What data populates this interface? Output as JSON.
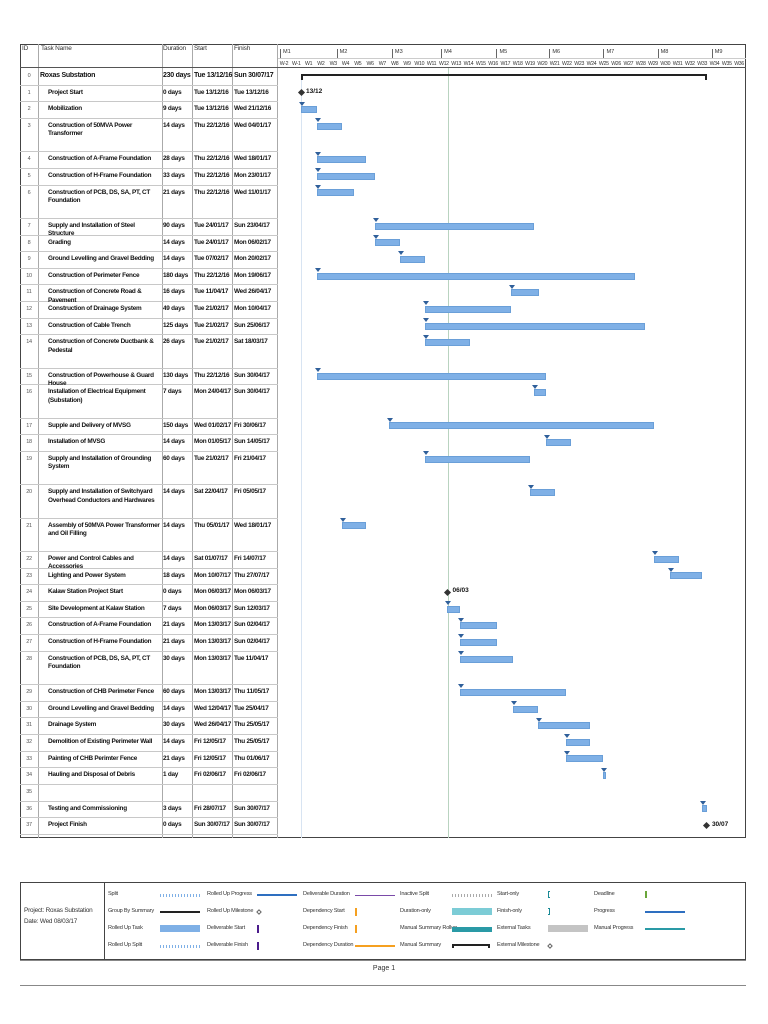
{
  "columns": {
    "id": "ID",
    "name": "Task Name",
    "duration": "Duration",
    "start": "Start",
    "finish": "Finish"
  },
  "timescale": {
    "months": [
      "M1",
      "M2",
      "M3",
      "M4",
      "M5",
      "M6",
      "M7",
      "M8",
      "M9"
    ],
    "weeks": [
      "W-2",
      "W-1",
      "W1",
      "W2",
      "W3",
      "W4",
      "W5",
      "W6",
      "W7",
      "W8",
      "W9",
      "W10",
      "W11",
      "W12",
      "W13",
      "W14",
      "W15",
      "W16",
      "W17",
      "W18",
      "W19",
      "W20",
      "W21",
      "W22",
      "W23",
      "W24",
      "W25",
      "W26",
      "W27",
      "W28",
      "W29",
      "W30",
      "W31",
      "W32",
      "W33",
      "W34",
      "W35",
      "W36"
    ]
  },
  "colors": {
    "task_bar": "#7fb0e6",
    "task_border": "#6a9fd8",
    "status_line": "#b9d3c0",
    "summary": "#222222"
  },
  "tasks": [
    {
      "id": "0",
      "name": "Roxas Substation",
      "duration": "230 days",
      "start": "Tue 13/12/16",
      "finish": "Sun 30/07/17",
      "type": "summary",
      "lines": 1
    },
    {
      "id": "1",
      "name": "Project Start",
      "duration": "0 days",
      "start": "Tue 13/12/16",
      "finish": "Tue 13/12/16",
      "type": "milestone",
      "label": "13/12",
      "lines": 1
    },
    {
      "id": "2",
      "name": "Mobilization",
      "duration": "9 days",
      "start": "Tue 13/12/16",
      "finish": "Wed 21/12/16",
      "type": "task",
      "lines": 1
    },
    {
      "id": "3",
      "name": "Construction of 50MVA Power Transformer",
      "duration": "14 days",
      "start": "Thu 22/12/16",
      "finish": "Wed 04/01/17",
      "type": "task",
      "lines": 2
    },
    {
      "id": "4",
      "name": "Construction of A-Frame Foundation",
      "duration": "28 days",
      "start": "Thu 22/12/16",
      "finish": "Wed 18/01/17",
      "type": "task",
      "lines": 1
    },
    {
      "id": "5",
      "name": "Construction of H-Frame Foundation",
      "duration": "33 days",
      "start": "Thu 22/12/16",
      "finish": "Mon 23/01/17",
      "type": "task",
      "lines": 1
    },
    {
      "id": "6",
      "name": "Construction of PCB, DS, SA, PT, CT Foundation",
      "duration": "21 days",
      "start": "Thu 22/12/16",
      "finish": "Wed 11/01/17",
      "type": "task",
      "lines": 2
    },
    {
      "id": "7",
      "name": "Supply and Installation of Steel Structure",
      "duration": "90 days",
      "start": "Tue 24/01/17",
      "finish": "Sun 23/04/17",
      "type": "task",
      "lines": 1
    },
    {
      "id": "8",
      "name": "Grading",
      "duration": "14 days",
      "start": "Tue 24/01/17",
      "finish": "Mon 06/02/17",
      "type": "task",
      "lines": 1
    },
    {
      "id": "9",
      "name": "Ground Levelling and Gravel Bedding",
      "duration": "14 days",
      "start": "Tue 07/02/17",
      "finish": "Mon 20/02/17",
      "type": "task",
      "lines": 1
    },
    {
      "id": "10",
      "name": "Construction of Perimeter Fence",
      "duration": "180 days",
      "start": "Thu 22/12/16",
      "finish": "Mon 19/06/17",
      "type": "task",
      "lines": 1
    },
    {
      "id": "11",
      "name": "Construction of Concrete Road & Pavement",
      "duration": "16 days",
      "start": "Tue 11/04/17",
      "finish": "Wed 26/04/17",
      "type": "task",
      "lines": 1
    },
    {
      "id": "12",
      "name": "Construction of Drainage System",
      "duration": "49 days",
      "start": "Tue 21/02/17",
      "finish": "Mon 10/04/17",
      "type": "task",
      "lines": 1
    },
    {
      "id": "13",
      "name": "Construction of Cable Trench",
      "duration": "125 days",
      "start": "Tue 21/02/17",
      "finish": "Sun 25/06/17",
      "type": "task",
      "lines": 1
    },
    {
      "id": "14",
      "name": "Construction of Concrete Ductbank & Pedestal",
      "duration": "26 days",
      "start": "Tue 21/02/17",
      "finish": "Sat 18/03/17",
      "type": "task",
      "lines": 2
    },
    {
      "id": "15",
      "name": "Construction of Powerhouse & Guard House",
      "duration": "130 days",
      "start": "Thu 22/12/16",
      "finish": "Sun 30/04/17",
      "type": "task",
      "lines": 1
    },
    {
      "id": "16",
      "name": "Installation of Electrical Equipment (Substation)",
      "duration": "7 days",
      "start": "Mon 24/04/17",
      "finish": "Sun 30/04/17",
      "type": "task",
      "lines": 2
    },
    {
      "id": "17",
      "name": "Supple and Delivery of MVSG",
      "duration": "150 days",
      "start": "Wed 01/02/17",
      "finish": "Fri 30/06/17",
      "type": "task",
      "lines": 1
    },
    {
      "id": "18",
      "name": "Installation of MVSG",
      "duration": "14 days",
      "start": "Mon 01/05/17",
      "finish": "Sun 14/05/17",
      "type": "task",
      "lines": 1
    },
    {
      "id": "19",
      "name": "Supply and Installation of Grounding System",
      "duration": "60 days",
      "start": "Tue 21/02/17",
      "finish": "Fri 21/04/17",
      "type": "task",
      "lines": 2
    },
    {
      "id": "20",
      "name": "Supply and Installation of Switchyard Overhead Conductors and Hardwares",
      "duration": "14 days",
      "start": "Sat 22/04/17",
      "finish": "Fri 05/05/17",
      "type": "task",
      "lines": 2
    },
    {
      "id": "21",
      "name": "Assembly of 50MVA Power Transformer and Oil Filling",
      "duration": "14 days",
      "start": "Thu 05/01/17",
      "finish": "Wed 18/01/17",
      "type": "task",
      "lines": 2
    },
    {
      "id": "22",
      "name": "Power and Control Cables and Accessories",
      "duration": "14 days",
      "start": "Sat 01/07/17",
      "finish": "Fri 14/07/17",
      "type": "task",
      "lines": 1
    },
    {
      "id": "23",
      "name": "Lighting and Power System",
      "duration": "18 days",
      "start": "Mon 10/07/17",
      "finish": "Thu 27/07/17",
      "type": "task",
      "lines": 1
    },
    {
      "id": "24",
      "name": "Kalaw Station Project Start",
      "duration": "0 days",
      "start": "Mon 06/03/17",
      "finish": "Mon 06/03/17",
      "type": "milestone",
      "label": "06/03",
      "lines": 1
    },
    {
      "id": "25",
      "name": "Site Development at Kalaw Station",
      "duration": "7 days",
      "start": "Mon 06/03/17",
      "finish": "Sun 12/03/17",
      "type": "task",
      "lines": 1
    },
    {
      "id": "26",
      "name": "Construction of A-Frame Foundation",
      "duration": "21 days",
      "start": "Mon 13/03/17",
      "finish": "Sun 02/04/17",
      "type": "task",
      "lines": 1
    },
    {
      "id": "27",
      "name": "Construction of H-Frame Foundation",
      "duration": "21 days",
      "start": "Mon 13/03/17",
      "finish": "Sun 02/04/17",
      "type": "task",
      "lines": 1
    },
    {
      "id": "28",
      "name": "Construction of PCB, DS, SA, PT, CT Foundation",
      "duration": "30 days",
      "start": "Mon 13/03/17",
      "finish": "Tue 11/04/17",
      "type": "task",
      "lines": 2
    },
    {
      "id": "29",
      "name": "Construction of CHB Perimeter Fence",
      "duration": "60 days",
      "start": "Mon 13/03/17",
      "finish": "Thu 11/05/17",
      "type": "task",
      "lines": 1
    },
    {
      "id": "30",
      "name": "Ground Levelling and Gravel Bedding",
      "duration": "14 days",
      "start": "Wed 12/04/17",
      "finish": "Tue 25/04/17",
      "type": "task",
      "lines": 1
    },
    {
      "id": "31",
      "name": "Drainage System",
      "duration": "30 days",
      "start": "Wed 26/04/17",
      "finish": "Thu 25/05/17",
      "type": "task",
      "lines": 1
    },
    {
      "id": "32",
      "name": "Demolition of Existing Perimeter Wall",
      "duration": "14 days",
      "start": "Fri 12/05/17",
      "finish": "Thu 25/05/17",
      "type": "task",
      "lines": 1
    },
    {
      "id": "33",
      "name": "Painting of CHB Perimter Fence",
      "duration": "21 days",
      "start": "Fri 12/05/17",
      "finish": "Thu 01/06/17",
      "type": "task",
      "lines": 1
    },
    {
      "id": "34",
      "name": "Hauling and Disposal of Debris",
      "duration": "1 day",
      "start": "Fri 02/06/17",
      "finish": "Fri 02/06/17",
      "type": "task",
      "lines": 1
    },
    {
      "id": "35",
      "name": "",
      "duration": "",
      "start": "",
      "finish": "",
      "type": "empty",
      "lines": 1
    },
    {
      "id": "36",
      "name": "Testing and Commissioning",
      "duration": "3 days",
      "start": "Fri 28/07/17",
      "finish": "Sun 30/07/17",
      "type": "task",
      "lines": 1
    },
    {
      "id": "37",
      "name": "Project Finish",
      "duration": "0 days",
      "start": "Sun 30/07/17",
      "finish": "Sun 30/07/17",
      "type": "milestone",
      "label": "30/07",
      "lines": 1
    }
  ],
  "footer": {
    "project": "Project: Roxas Substation",
    "date": "Date: Wed 08/03/17",
    "page": "Page 1"
  },
  "legend": [
    [
      {
        "label": "Split",
        "swatch": "split"
      },
      {
        "label": "Group By Summary",
        "swatch": "group-summary"
      },
      {
        "label": "Rolled Up Task",
        "swatch": "rolled-task"
      },
      {
        "label": "Rolled Up Split",
        "swatch": "split"
      }
    ],
    [
      {
        "label": "Rolled Up Progress",
        "swatch": "progress-blue"
      },
      {
        "label": "Rolled Up Milestone",
        "swatch": "milestone-hollow"
      },
      {
        "label": "Deliverable Start",
        "swatch": "purple-tick"
      },
      {
        "label": "Deliverable Finish",
        "swatch": "purple-tick"
      }
    ],
    [
      {
        "label": "Deliverable Duration",
        "swatch": "purple-line"
      },
      {
        "label": "Dependency Start",
        "swatch": "orange-tick"
      },
      {
        "label": "Dependency Finish",
        "swatch": "orange-tick"
      },
      {
        "label": "Dependency Duration",
        "swatch": "orange-line"
      }
    ],
    [
      {
        "label": "Inactive Split",
        "swatch": "split-gray"
      },
      {
        "label": "Duration-only",
        "swatch": "duration-only"
      },
      {
        "label": "Manual Summary Rollup",
        "swatch": "teal-bar"
      },
      {
        "label": "Manual Summary",
        "swatch": "manual-summary"
      }
    ],
    [
      {
        "label": "Start-only",
        "swatch": "start-bracket"
      },
      {
        "label": "Finish-only",
        "swatch": "finish-bracket"
      },
      {
        "label": "External Tasks",
        "swatch": "gray-bar"
      },
      {
        "label": "External Milestone",
        "swatch": "milestone-hollow"
      }
    ],
    [
      {
        "label": "Deadline",
        "swatch": "deadline-arrow"
      },
      {
        "label": "Progress",
        "swatch": "progress-blue"
      },
      {
        "label": "Manual Progress",
        "swatch": "teal-line"
      }
    ]
  ]
}
